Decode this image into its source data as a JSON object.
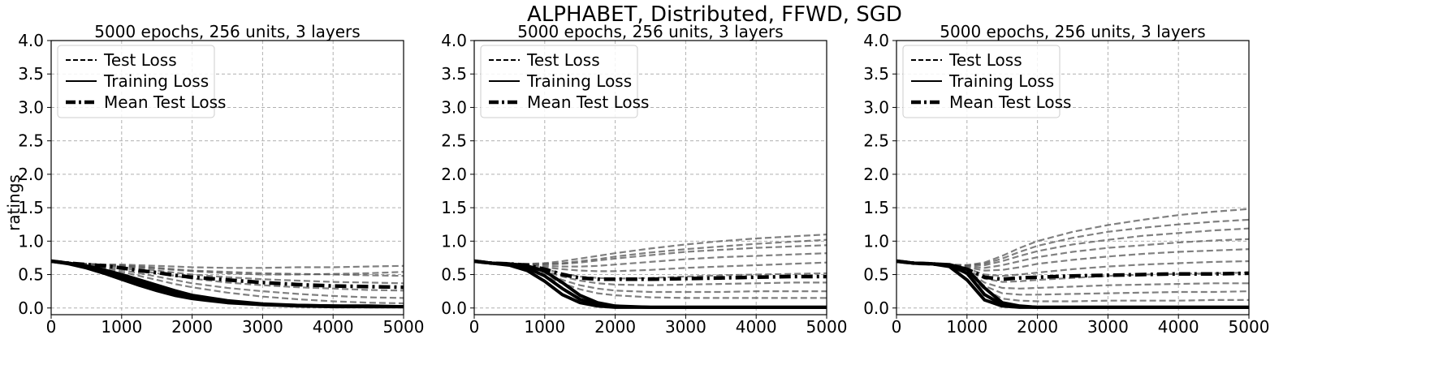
{
  "figure": {
    "title": "ALPHABET, Distributed, FFWD, SGD",
    "ylabel": "ratings"
  },
  "legend": [
    "Test Loss",
    "Training Loss",
    "Mean Test Loss"
  ],
  "chart_data": [
    {
      "type": "line",
      "title": "5000 epochs, 256 units, 3 layers",
      "xlabel": "",
      "ylabel": "ratings",
      "xlim": [
        0,
        5000
      ],
      "ylim": [
        -0.1,
        4.0
      ],
      "xticks": [
        "0",
        "1000",
        "2000",
        "3000",
        "4000",
        "5000"
      ],
      "yticks": [
        "0.0",
        "0.5",
        "1.0",
        "1.5",
        "2.0",
        "2.5",
        "3.0",
        "3.5",
        "4.0"
      ],
      "grid": true,
      "legend_position": "upper-left",
      "x": [
        0,
        250,
        500,
        750,
        1000,
        1250,
        1500,
        1750,
        2000,
        2500,
        3000,
        3500,
        4000,
        4500,
        5000
      ],
      "series": [
        {
          "name": "Test Loss",
          "style": "dashed",
          "values": [
            0.7,
            0.67,
            0.66,
            0.65,
            0.64,
            0.62,
            0.6,
            0.58,
            0.56,
            0.54,
            0.52,
            0.51,
            0.5,
            0.49,
            0.48
          ]
        },
        {
          "name": "Test Loss",
          "style": "dashed",
          "values": [
            0.7,
            0.67,
            0.66,
            0.64,
            0.62,
            0.59,
            0.56,
            0.53,
            0.5,
            0.46,
            0.43,
            0.41,
            0.39,
            0.38,
            0.37
          ]
        },
        {
          "name": "Test Loss",
          "style": "dashed",
          "values": [
            0.7,
            0.67,
            0.65,
            0.63,
            0.6,
            0.56,
            0.52,
            0.48,
            0.44,
            0.38,
            0.34,
            0.31,
            0.29,
            0.27,
            0.26
          ]
        },
        {
          "name": "Test Loss",
          "style": "dashed",
          "values": [
            0.7,
            0.67,
            0.66,
            0.65,
            0.65,
            0.64,
            0.63,
            0.62,
            0.61,
            0.6,
            0.6,
            0.61,
            0.61,
            0.62,
            0.63
          ]
        },
        {
          "name": "Test Loss",
          "style": "dashed",
          "values": [
            0.7,
            0.66,
            0.64,
            0.61,
            0.57,
            0.52,
            0.47,
            0.42,
            0.37,
            0.3,
            0.25,
            0.21,
            0.18,
            0.16,
            0.15
          ]
        },
        {
          "name": "Test Loss",
          "style": "dashed",
          "values": [
            0.7,
            0.66,
            0.63,
            0.59,
            0.54,
            0.48,
            0.42,
            0.36,
            0.31,
            0.23,
            0.17,
            0.13,
            0.1,
            0.08,
            0.07
          ]
        },
        {
          "name": "Test Loss",
          "style": "dashed",
          "values": [
            0.7,
            0.67,
            0.66,
            0.65,
            0.63,
            0.61,
            0.59,
            0.57,
            0.55,
            0.52,
            0.5,
            0.5,
            0.51,
            0.52,
            0.54
          ]
        },
        {
          "name": "Training Loss",
          "style": "solid",
          "values": [
            0.7,
            0.66,
            0.6,
            0.52,
            0.43,
            0.34,
            0.26,
            0.19,
            0.14,
            0.08,
            0.05,
            0.03,
            0.02,
            0.02,
            0.02
          ]
        },
        {
          "name": "Training Loss",
          "style": "solid",
          "values": [
            0.7,
            0.67,
            0.62,
            0.55,
            0.47,
            0.38,
            0.3,
            0.22,
            0.16,
            0.09,
            0.05,
            0.04,
            0.03,
            0.02,
            0.02
          ]
        },
        {
          "name": "Training Loss",
          "style": "solid",
          "values": [
            0.7,
            0.67,
            0.63,
            0.57,
            0.5,
            0.42,
            0.34,
            0.26,
            0.19,
            0.11,
            0.06,
            0.04,
            0.03,
            0.03,
            0.02
          ]
        },
        {
          "name": "Mean Test Loss",
          "style": "dashdot",
          "values": [
            0.7,
            0.67,
            0.65,
            0.63,
            0.6,
            0.56,
            0.53,
            0.49,
            0.46,
            0.42,
            0.38,
            0.35,
            0.33,
            0.32,
            0.31
          ]
        }
      ]
    },
    {
      "type": "line",
      "title": "5000 epochs, 256 units, 3 layers",
      "xlabel": "",
      "ylabel": "",
      "xlim": [
        0,
        5000
      ],
      "ylim": [
        -0.1,
        4.0
      ],
      "xticks": [
        "0",
        "1000",
        "2000",
        "3000",
        "4000",
        "5000"
      ],
      "yticks": [
        "0.0",
        "0.5",
        "1.0",
        "1.5",
        "2.0",
        "2.5",
        "3.0",
        "3.5",
        "4.0"
      ],
      "grid": true,
      "legend_position": "upper-left",
      "x": [
        0,
        250,
        500,
        750,
        1000,
        1250,
        1500,
        1750,
        2000,
        2500,
        3000,
        3500,
        4000,
        4500,
        5000
      ],
      "series": [
        {
          "name": "Test Loss",
          "style": "dashed",
          "values": [
            0.7,
            0.67,
            0.66,
            0.66,
            0.67,
            0.7,
            0.74,
            0.78,
            0.82,
            0.89,
            0.95,
            1.0,
            1.04,
            1.07,
            1.1
          ]
        },
        {
          "name": "Test Loss",
          "style": "dashed",
          "values": [
            0.7,
            0.67,
            0.66,
            0.65,
            0.65,
            0.66,
            0.68,
            0.71,
            0.74,
            0.79,
            0.84,
            0.87,
            0.9,
            0.92,
            0.94
          ]
        },
        {
          "name": "Test Loss",
          "style": "dashed",
          "values": [
            0.7,
            0.67,
            0.66,
            0.65,
            0.63,
            0.62,
            0.62,
            0.63,
            0.65,
            0.69,
            0.73,
            0.76,
            0.78,
            0.8,
            0.82
          ]
        },
        {
          "name": "Test Loss",
          "style": "dashed",
          "values": [
            0.7,
            0.67,
            0.66,
            0.64,
            0.61,
            0.58,
            0.56,
            0.55,
            0.55,
            0.57,
            0.6,
            0.62,
            0.64,
            0.66,
            0.68
          ]
        },
        {
          "name": "Test Loss",
          "style": "dashed",
          "values": [
            0.7,
            0.67,
            0.66,
            0.63,
            0.58,
            0.52,
            0.47,
            0.45,
            0.44,
            0.45,
            0.47,
            0.49,
            0.5,
            0.51,
            0.52
          ]
        },
        {
          "name": "Test Loss",
          "style": "dashed",
          "values": [
            0.7,
            0.67,
            0.65,
            0.61,
            0.55,
            0.47,
            0.41,
            0.37,
            0.35,
            0.34,
            0.35,
            0.36,
            0.37,
            0.38,
            0.38
          ]
        },
        {
          "name": "Test Loss",
          "style": "dashed",
          "values": [
            0.7,
            0.67,
            0.65,
            0.6,
            0.52,
            0.42,
            0.34,
            0.29,
            0.26,
            0.24,
            0.24,
            0.24,
            0.25,
            0.25,
            0.25
          ]
        },
        {
          "name": "Test Loss",
          "style": "dashed",
          "values": [
            0.7,
            0.67,
            0.64,
            0.58,
            0.48,
            0.37,
            0.28,
            0.22,
            0.19,
            0.16,
            0.15,
            0.15,
            0.15,
            0.15,
            0.15
          ]
        },
        {
          "name": "Test Loss",
          "style": "dashed",
          "values": [
            0.7,
            0.67,
            0.66,
            0.66,
            0.66,
            0.67,
            0.7,
            0.73,
            0.77,
            0.83,
            0.88,
            0.92,
            0.96,
            0.99,
            1.02
          ]
        },
        {
          "name": "Training Loss",
          "style": "solid",
          "values": [
            0.7,
            0.67,
            0.64,
            0.56,
            0.4,
            0.2,
            0.08,
            0.03,
            0.01,
            0.01,
            0.01,
            0.01,
            0.01,
            0.01,
            0.01
          ]
        },
        {
          "name": "Training Loss",
          "style": "solid",
          "values": [
            0.7,
            0.67,
            0.65,
            0.6,
            0.48,
            0.29,
            0.13,
            0.05,
            0.02,
            0.01,
            0.01,
            0.01,
            0.01,
            0.01,
            0.01
          ]
        },
        {
          "name": "Training Loss",
          "style": "solid",
          "values": [
            0.7,
            0.67,
            0.66,
            0.63,
            0.55,
            0.38,
            0.19,
            0.08,
            0.03,
            0.01,
            0.01,
            0.01,
            0.01,
            0.01,
            0.01
          ]
        },
        {
          "name": "Mean Test Loss",
          "style": "dashdot",
          "values": [
            0.7,
            0.67,
            0.66,
            0.64,
            0.58,
            0.5,
            0.45,
            0.43,
            0.43,
            0.43,
            0.44,
            0.45,
            0.46,
            0.47,
            0.47
          ]
        }
      ]
    },
    {
      "type": "line",
      "title": "5000 epochs, 256 units, 3 layers",
      "xlabel": "",
      "ylabel": "",
      "xlim": [
        0,
        5000
      ],
      "ylim": [
        -0.1,
        4.0
      ],
      "xticks": [
        "0",
        "1000",
        "2000",
        "3000",
        "4000",
        "5000"
      ],
      "yticks": [
        "0.0",
        "0.5",
        "1.0",
        "1.5",
        "2.0",
        "2.5",
        "3.0",
        "3.5",
        "4.0"
      ],
      "grid": true,
      "legend_position": "upper-left",
      "x": [
        0,
        250,
        500,
        750,
        1000,
        1250,
        1500,
        1750,
        2000,
        2500,
        3000,
        3500,
        4000,
        4500,
        5000
      ],
      "series": [
        {
          "name": "Test Loss",
          "style": "dashed",
          "values": [
            0.7,
            0.67,
            0.66,
            0.65,
            0.64,
            0.68,
            0.78,
            0.9,
            1.0,
            1.14,
            1.24,
            1.32,
            1.39,
            1.44,
            1.48
          ]
        },
        {
          "name": "Test Loss",
          "style": "dashed",
          "values": [
            0.7,
            0.67,
            0.66,
            0.65,
            0.63,
            0.64,
            0.7,
            0.78,
            0.85,
            0.95,
            1.02,
            1.08,
            1.12,
            1.16,
            1.19
          ]
        },
        {
          "name": "Test Loss",
          "style": "dashed",
          "values": [
            0.7,
            0.67,
            0.66,
            0.65,
            0.62,
            0.6,
            0.64,
            0.7,
            0.76,
            0.84,
            0.9,
            0.94,
            0.98,
            1.01,
            1.03
          ]
        },
        {
          "name": "Test Loss",
          "style": "dashed",
          "values": [
            0.7,
            0.67,
            0.66,
            0.65,
            0.61,
            0.56,
            0.57,
            0.61,
            0.66,
            0.72,
            0.77,
            0.81,
            0.84,
            0.86,
            0.88
          ]
        },
        {
          "name": "Test Loss",
          "style": "dashed",
          "values": [
            0.7,
            0.67,
            0.66,
            0.64,
            0.59,
            0.5,
            0.48,
            0.5,
            0.53,
            0.58,
            0.62,
            0.65,
            0.67,
            0.69,
            0.7
          ]
        },
        {
          "name": "Test Loss",
          "style": "dashed",
          "values": [
            0.7,
            0.67,
            0.66,
            0.64,
            0.57,
            0.44,
            0.39,
            0.4,
            0.42,
            0.45,
            0.48,
            0.5,
            0.51,
            0.52,
            0.53
          ]
        },
        {
          "name": "Test Loss",
          "style": "dashed",
          "values": [
            0.7,
            0.67,
            0.66,
            0.63,
            0.55,
            0.38,
            0.3,
            0.29,
            0.3,
            0.32,
            0.34,
            0.35,
            0.36,
            0.37,
            0.37
          ]
        },
        {
          "name": "Test Loss",
          "style": "dashed",
          "values": [
            0.7,
            0.67,
            0.66,
            0.63,
            0.53,
            0.33,
            0.22,
            0.2,
            0.2,
            0.21,
            0.22,
            0.23,
            0.24,
            0.24,
            0.25
          ]
        },
        {
          "name": "Test Loss",
          "style": "dashed",
          "values": [
            0.7,
            0.67,
            0.66,
            0.62,
            0.51,
            0.28,
            0.14,
            0.11,
            0.1,
            0.1,
            0.11,
            0.11,
            0.11,
            0.12,
            0.12
          ]
        },
        {
          "name": "Test Loss",
          "style": "dashed",
          "values": [
            0.7,
            0.67,
            0.66,
            0.65,
            0.64,
            0.66,
            0.74,
            0.84,
            0.93,
            1.05,
            1.14,
            1.2,
            1.25,
            1.29,
            1.32
          ]
        },
        {
          "name": "Training Loss",
          "style": "solid",
          "values": [
            0.7,
            0.67,
            0.66,
            0.62,
            0.42,
            0.12,
            0.03,
            0.01,
            0.01,
            0.01,
            0.01,
            0.01,
            0.01,
            0.01,
            0.01
          ]
        },
        {
          "name": "Training Loss",
          "style": "solid",
          "values": [
            0.7,
            0.67,
            0.66,
            0.64,
            0.52,
            0.2,
            0.05,
            0.02,
            0.01,
            0.01,
            0.01,
            0.01,
            0.01,
            0.01,
            0.01
          ]
        },
        {
          "name": "Training Loss",
          "style": "solid",
          "values": [
            0.7,
            0.67,
            0.66,
            0.65,
            0.58,
            0.3,
            0.08,
            0.03,
            0.01,
            0.01,
            0.01,
            0.01,
            0.01,
            0.01,
            0.01
          ]
        },
        {
          "name": "Mean Test Loss",
          "style": "dashdot",
          "values": [
            0.7,
            0.67,
            0.66,
            0.64,
            0.58,
            0.46,
            0.43,
            0.45,
            0.46,
            0.48,
            0.49,
            0.5,
            0.51,
            0.51,
            0.52
          ]
        }
      ]
    }
  ]
}
